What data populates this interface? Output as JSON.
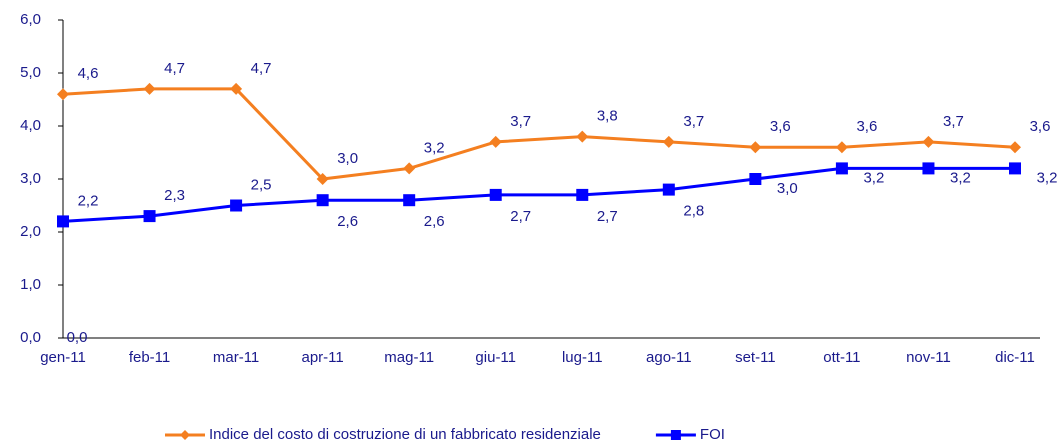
{
  "chart_data": {
    "type": "line",
    "categories": [
      "gen-11",
      "feb-11",
      "mar-11",
      "apr-11",
      "mag-11",
      "giu-11",
      "lug-11",
      "ago-11",
      "set-11",
      "ott-11",
      "nov-11",
      "dic-11"
    ],
    "series": [
      {
        "name": "Indice del costo di costruzione di un fabbricato residenziale",
        "color": "#f47f20",
        "marker": "diamond",
        "values": [
          4.6,
          4.7,
          4.7,
          3.0,
          3.2,
          3.7,
          3.8,
          3.7,
          3.6,
          3.6,
          3.7,
          3.6
        ],
        "value_labels": [
          "4,6",
          "4,7",
          "4,7",
          "3,0",
          "3,2",
          "3,7",
          "3,8",
          "3,7",
          "3,6",
          "3,6",
          "3,7",
          "3,6"
        ]
      },
      {
        "name": "FOI",
        "color": "#0000ff",
        "marker": "square",
        "values": [
          2.2,
          2.3,
          2.5,
          2.6,
          2.6,
          2.7,
          2.7,
          2.8,
          3.0,
          3.2,
          3.2,
          3.2
        ],
        "value_labels": [
          "2,2",
          "2,3",
          "2,5",
          "2,6",
          "2,6",
          "2,7",
          "2,7",
          "2,8",
          "3,0",
          "3,2",
          "3,2",
          "3,2"
        ]
      },
      {
        "color": "#000000",
        "marker": "none",
        "values": [
          0,
          null,
          null,
          null,
          null,
          null,
          null,
          null,
          null,
          null,
          null,
          null
        ],
        "value_labels": [
          "0,0",
          null,
          null,
          null,
          null,
          null,
          null,
          null,
          null,
          null,
          null,
          null
        ]
      }
    ],
    "ylim": [
      0,
      6
    ],
    "yticks": [
      {
        "value": 0,
        "label": "0,0"
      },
      {
        "value": 1,
        "label": "1,0"
      },
      {
        "value": 2,
        "label": "2,0"
      },
      {
        "value": 3,
        "label": "3,0"
      },
      {
        "value": 4,
        "label": "4,0"
      },
      {
        "value": 5,
        "label": "5,0"
      },
      {
        "value": 6,
        "label": "6,0"
      }
    ],
    "grid": false,
    "legend": "bottom"
  }
}
